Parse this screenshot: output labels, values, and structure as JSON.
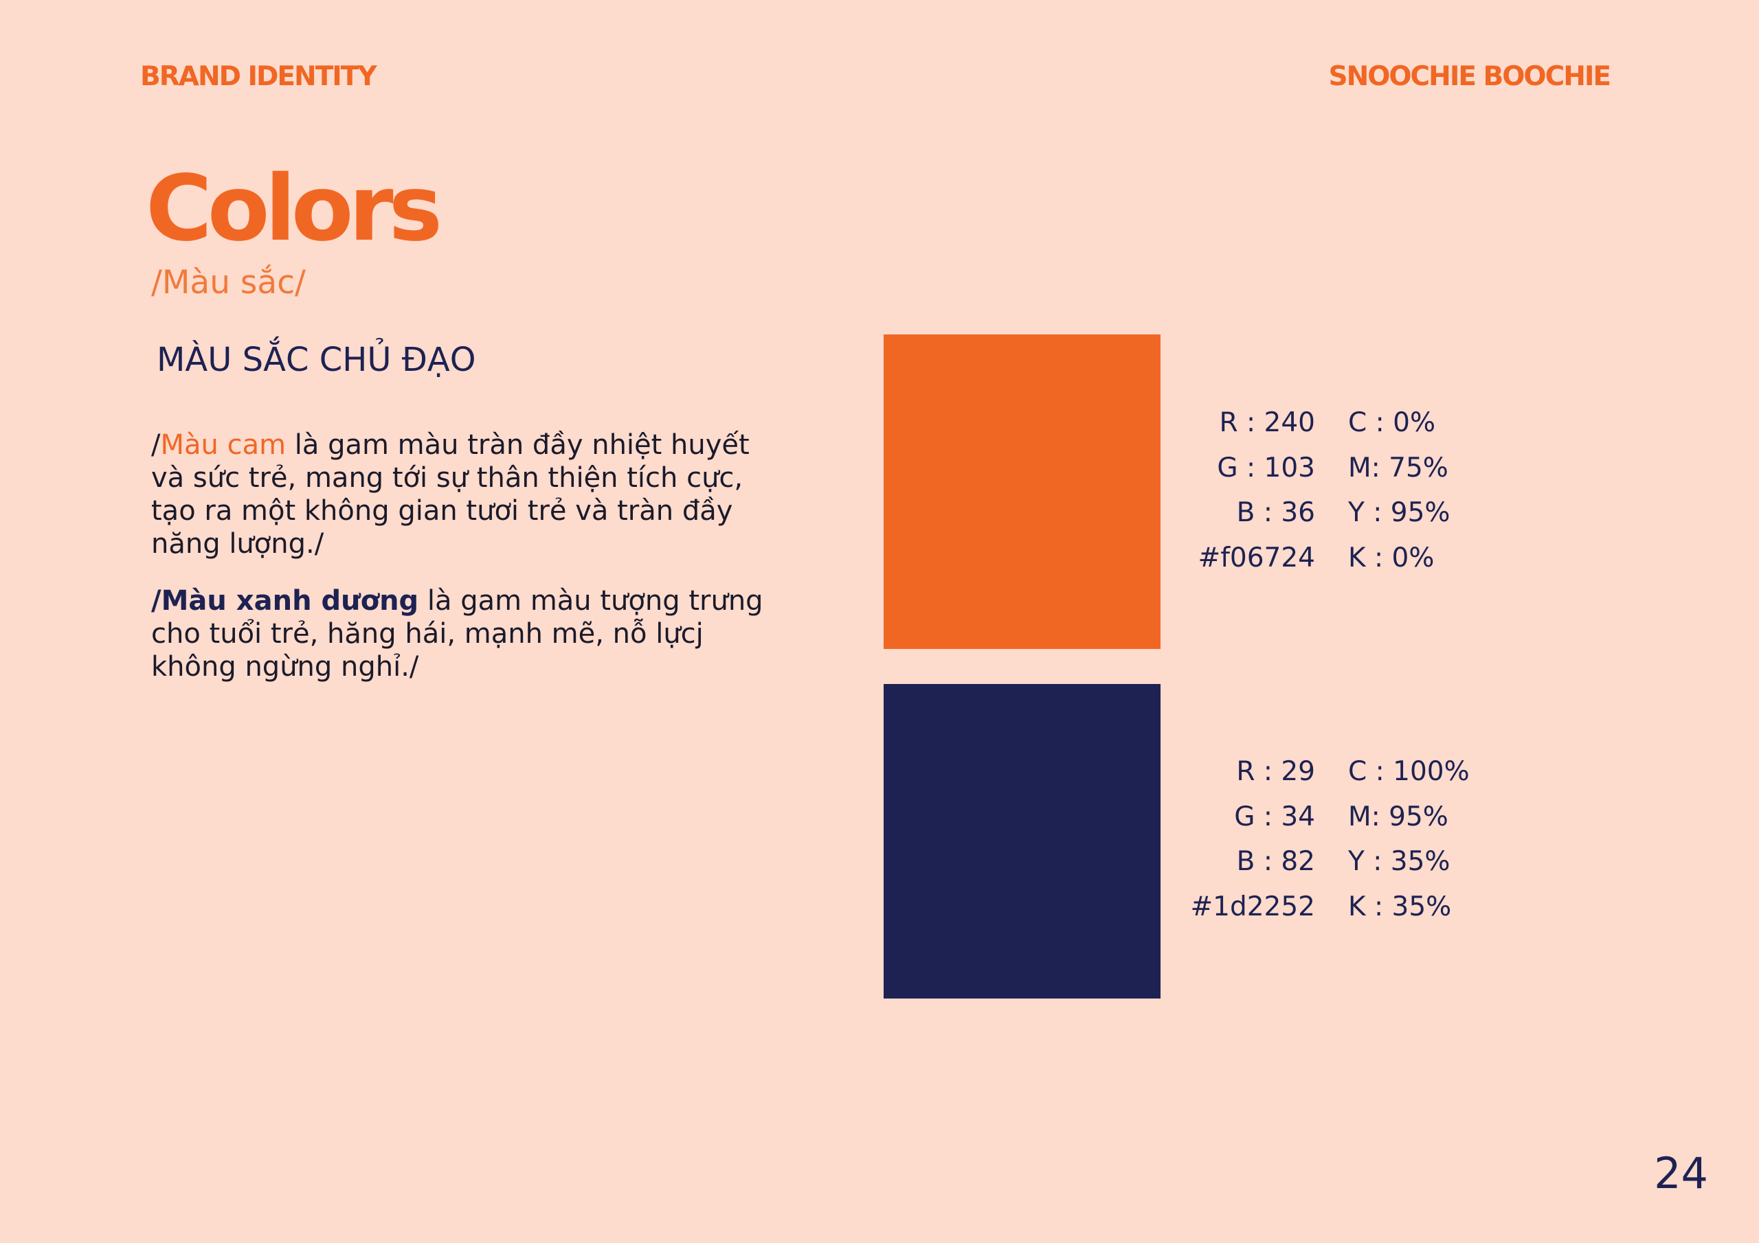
{
  "header": {
    "left_label": "BRAND IDENTITY",
    "right_label": "SNOOCHIE BOOCHIE"
  },
  "title": "Colors",
  "subtitle": "/Màu sắc/",
  "section_heading": "MÀU SẮC CHỦ ĐẠO",
  "descriptions": {
    "orange": {
      "prefix": "/",
      "highlight": "Màu cam",
      "text": " là gam màu tràn đầy nhiệt huyết và sức trẻ, mang tới sự thân thiện tích cực, tạo ra một không gian tươi trẻ và tràn đầy năng lượng./"
    },
    "blue": {
      "prefix": "/",
      "highlight": "Màu xanh dương",
      "text": " là gam màu tượng trưng cho tuổi trẻ, hăng hái, mạnh mẽ, nỗ lựcj không ngừng nghỉ./"
    }
  },
  "swatches": [
    {
      "color": "#f06724",
      "rgb": {
        "r": "R : 240",
        "g": "G : 103",
        "b": "B : 36",
        "hex": "#f06724"
      },
      "cmyk": {
        "c": "C : 0%",
        "m": "M: 75%",
        "y": "Y : 95%",
        "k": "K : 0%"
      }
    },
    {
      "color": "#1d2252",
      "rgb": {
        "r": "R : 29",
        "g": "G : 34",
        "b": "B : 82",
        "hex": "#1d2252"
      },
      "cmyk": {
        "c": "C : 100%",
        "m": "M: 95%",
        "y": "Y : 35%",
        "k": "K : 35%"
      }
    }
  ],
  "page_number": "24",
  "colors": {
    "background": "#fddbcd",
    "accent_orange": "#f06724",
    "accent_navy": "#1d2252"
  }
}
